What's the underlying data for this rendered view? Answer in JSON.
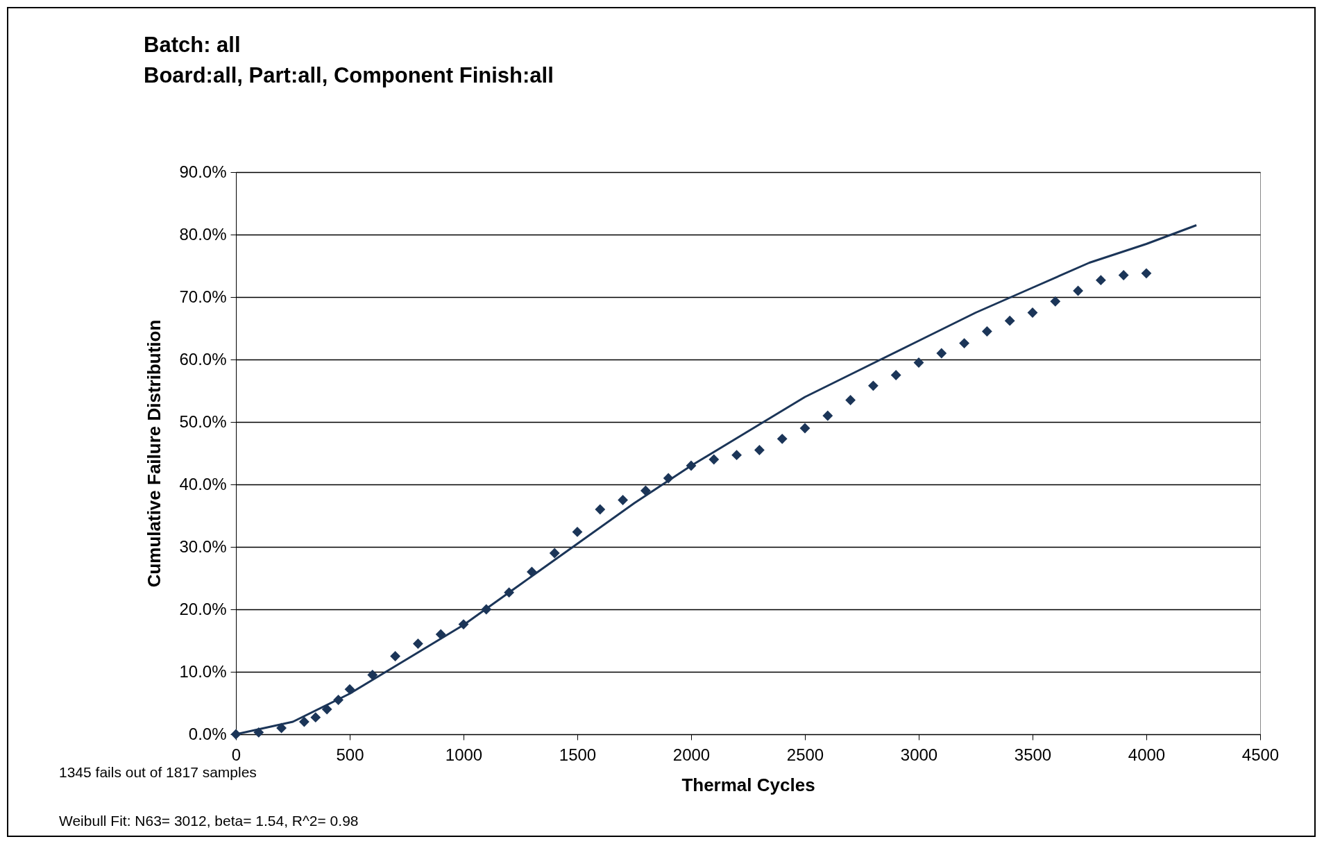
{
  "chart_data": {
    "type": "scatter",
    "title": [
      "Batch: all",
      "Board:all, Part:all, Component  Finish:all"
    ],
    "xlabel": "Thermal Cycles",
    "ylabel": "Cumulative Failure Distribution",
    "annotations": [
      "1345 fails out of 1817 samples",
      "Weibull Fit: N63= 3012, beta= 1.54, R^2= 0.98"
    ],
    "xlim": [
      0,
      4500
    ],
    "xticks": [
      0,
      500,
      1000,
      1500,
      2000,
      2500,
      3000,
      3500,
      4000,
      4500
    ],
    "ylim": [
      0,
      90
    ],
    "yticks": [
      {
        "value": 0,
        "label": "0.0%"
      },
      {
        "value": 10,
        "label": "10.0%"
      },
      {
        "value": 20,
        "label": "20.0%"
      },
      {
        "value": 30,
        "label": "30.0%"
      },
      {
        "value": 40,
        "label": "40.0%"
      },
      {
        "value": 50,
        "label": "50.0%"
      },
      {
        "value": 60,
        "label": "60.0%"
      },
      {
        "value": 70,
        "label": "70.0%"
      },
      {
        "value": 80,
        "label": "80.0%"
      },
      {
        "value": 90,
        "label": "90.0%"
      }
    ],
    "grid": "y",
    "series": [
      {
        "marker": "diamond",
        "color": "#1b3558",
        "x": [
          0,
          100,
          200,
          300,
          350,
          400,
          450,
          500,
          600,
          700,
          800,
          900,
          1000,
          1100,
          1200,
          1300,
          1400,
          1500,
          1600,
          1700,
          1800,
          1900,
          2000,
          2100,
          2200,
          2300,
          2400,
          2500,
          2600,
          2700,
          2800,
          2900,
          3000,
          3100,
          3200,
          3300,
          3400,
          3500,
          3600,
          3700,
          3800,
          3900,
          4000
        ],
        "values": [
          0,
          0.3,
          1,
          2,
          2.7,
          4,
          5.5,
          7.2,
          9.5,
          12.5,
          14.5,
          16,
          17.6,
          20,
          22.7,
          26,
          29,
          32.4,
          36,
          37.5,
          39,
          41,
          43,
          44,
          44.7,
          45.5,
          47.3,
          49,
          51,
          53.5,
          55.8,
          57.5,
          59.5,
          61,
          62.6,
          64.5,
          66.2,
          67.5,
          69.3,
          71,
          72.7,
          73.5,
          73.8
        ]
      },
      {
        "type": "line",
        "color": "#1b3558",
        "line_style": "solid",
        "x": [
          0,
          250,
          500,
          750,
          1000,
          1250,
          1500,
          1750,
          2000,
          2250,
          2500,
          2750,
          3000,
          3250,
          3500,
          3750,
          4000,
          4220
        ],
        "values": [
          0,
          2,
          6.5,
          12,
          17.5,
          24,
          30.5,
          37,
          43,
          48.5,
          54,
          58.5,
          63,
          67.5,
          71.5,
          75.5,
          78.5,
          81.5
        ]
      }
    ]
  }
}
